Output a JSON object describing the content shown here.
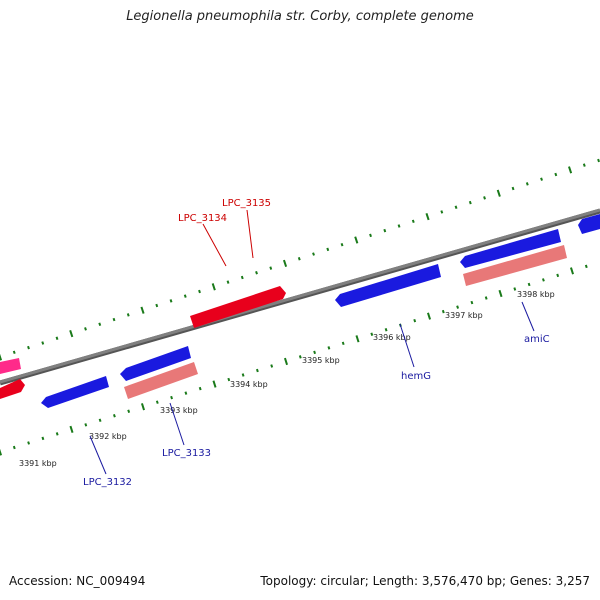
{
  "title": "Legionella pneumophila str. Corby, complete genome",
  "footer": {
    "accession": "Accession: NC_009494",
    "stats": "Topology: circular; Length: 3,576,470 bp; Genes: 3,257"
  },
  "colors": {
    "backbone": "#808080",
    "tick": "#1a7a1a",
    "plus_cds": "#e8001c",
    "minus_cds": "#1a1adf",
    "rna_gene": "#e87878",
    "magenta_gene": "#ff2a8a",
    "label_blue": "#1a1aa0",
    "label_red": "#cc0000"
  },
  "kbp_ticks": [
    "3391 kbp",
    "3392 kbp",
    "3393 kbp",
    "3394 kbp",
    "3395 kbp",
    "3396 kbp",
    "3397 kbp",
    "3398 kbp"
  ],
  "gene_labels": [
    {
      "name": "LPC_3134",
      "strand": "plus"
    },
    {
      "name": "LPC_3135",
      "strand": "plus"
    },
    {
      "name": "hemG",
      "strand": "minus"
    },
    {
      "name": "amiC",
      "strand": "minus"
    },
    {
      "name": "LPC_3133",
      "strand": "minus"
    },
    {
      "name": "LPC_3132",
      "strand": "minus"
    }
  ]
}
